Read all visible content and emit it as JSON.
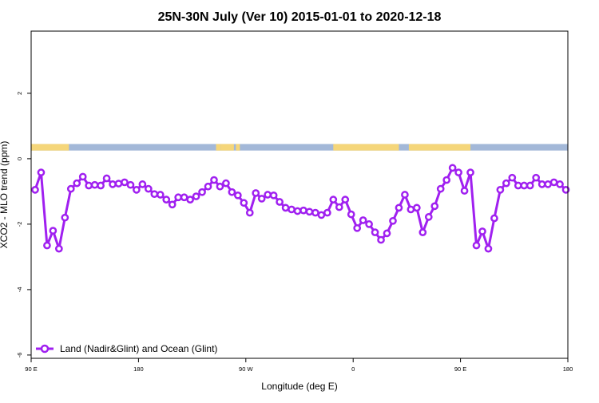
{
  "chart_data": {
    "type": "line",
    "title": "25N-30N July (Ver 10)   2015-01-01 to 2020-12-18",
    "xlabel": "Longitude (deg E)",
    "ylabel": "XCO2 - MLO trend (ppm)",
    "xlim": [
      -90,
      180
    ],
    "ylim": [
      -6.1,
      3.9
    ],
    "x_ticks": [
      {
        "value": -90,
        "label": "90 E"
      },
      {
        "value": -36,
        "label": "180"
      },
      {
        "value": 18,
        "label": "90 W"
      },
      {
        "value": 72,
        "label": "0"
      },
      {
        "value": 126,
        "label": "90 E"
      },
      {
        "value": 180,
        "label": "180"
      }
    ],
    "y_ticks": [
      -6,
      -4,
      -2,
      0,
      2
    ],
    "grid": false,
    "legend_position": "bottom-left",
    "series": [
      {
        "name": "Land (Nadir&Glint) and Ocean (Glint)",
        "color": "#a020f0",
        "x": [
          -88,
          -85,
          -82,
          -79,
          -76,
          -73,
          -70,
          -67,
          -64,
          -61,
          -58,
          -55,
          -52,
          -49,
          -46,
          -43,
          -40,
          -37,
          -34,
          -31,
          -28,
          -25,
          -22,
          -19,
          -16,
          -13,
          -10,
          -7,
          -4,
          -1,
          2,
          5,
          8,
          11,
          14,
          17,
          20,
          23,
          26,
          29,
          32,
          35,
          38,
          41,
          44,
          47,
          50,
          53,
          56,
          59,
          62,
          65,
          68,
          71,
          74,
          77,
          80,
          83,
          86,
          89,
          92,
          95,
          98,
          101,
          104,
          107,
          110,
          113,
          116,
          119,
          122,
          125,
          128,
          131,
          134,
          137,
          140,
          143,
          146,
          149,
          152,
          155,
          158,
          161,
          164,
          167,
          170,
          173,
          176,
          179
        ],
        "y": [
          -0.95,
          -0.42,
          -2.65,
          -2.2,
          -2.75,
          -1.8,
          -0.92,
          -0.75,
          -0.55,
          -0.82,
          -0.8,
          -0.82,
          -0.6,
          -0.78,
          -0.76,
          -0.72,
          -0.8,
          -0.95,
          -0.78,
          -0.92,
          -1.08,
          -1.1,
          -1.25,
          -1.4,
          -1.18,
          -1.18,
          -1.25,
          -1.15,
          -1.02,
          -0.85,
          -0.65,
          -0.85,
          -0.75,
          -1.02,
          -1.12,
          -1.35,
          -1.65,
          -1.05,
          -1.22,
          -1.1,
          -1.12,
          -1.32,
          -1.5,
          -1.55,
          -1.6,
          -1.58,
          -1.62,
          -1.65,
          -1.72,
          -1.65,
          -1.25,
          -1.48,
          -1.25,
          -1.7,
          -2.12,
          -1.88,
          -2.0,
          -2.25,
          -2.48,
          -2.28,
          -1.9,
          -1.5,
          -1.1,
          -1.55,
          -1.5,
          -2.25,
          -1.78,
          -1.45,
          -0.92,
          -0.65,
          -0.28,
          -0.42,
          -0.98,
          -0.42,
          -2.65,
          -2.22,
          -2.75,
          -1.82,
          -0.95,
          -0.75,
          -0.58,
          -0.82,
          -0.82,
          -0.82,
          -0.58,
          -0.78,
          -0.78,
          -0.72,
          -0.78,
          -0.95
        ]
      }
    ],
    "landmask": {
      "y_range": [
        0.25,
        0.45
      ],
      "ocean_color": "#a3b8d8",
      "land_color": "#f5d67a",
      "land_segments": [
        [
          -90,
          -71
        ],
        [
          3,
          5.5
        ],
        [
          5.5,
          12
        ],
        [
          13,
          15
        ],
        [
          62,
          95
        ],
        [
          100,
          131
        ]
      ]
    }
  }
}
